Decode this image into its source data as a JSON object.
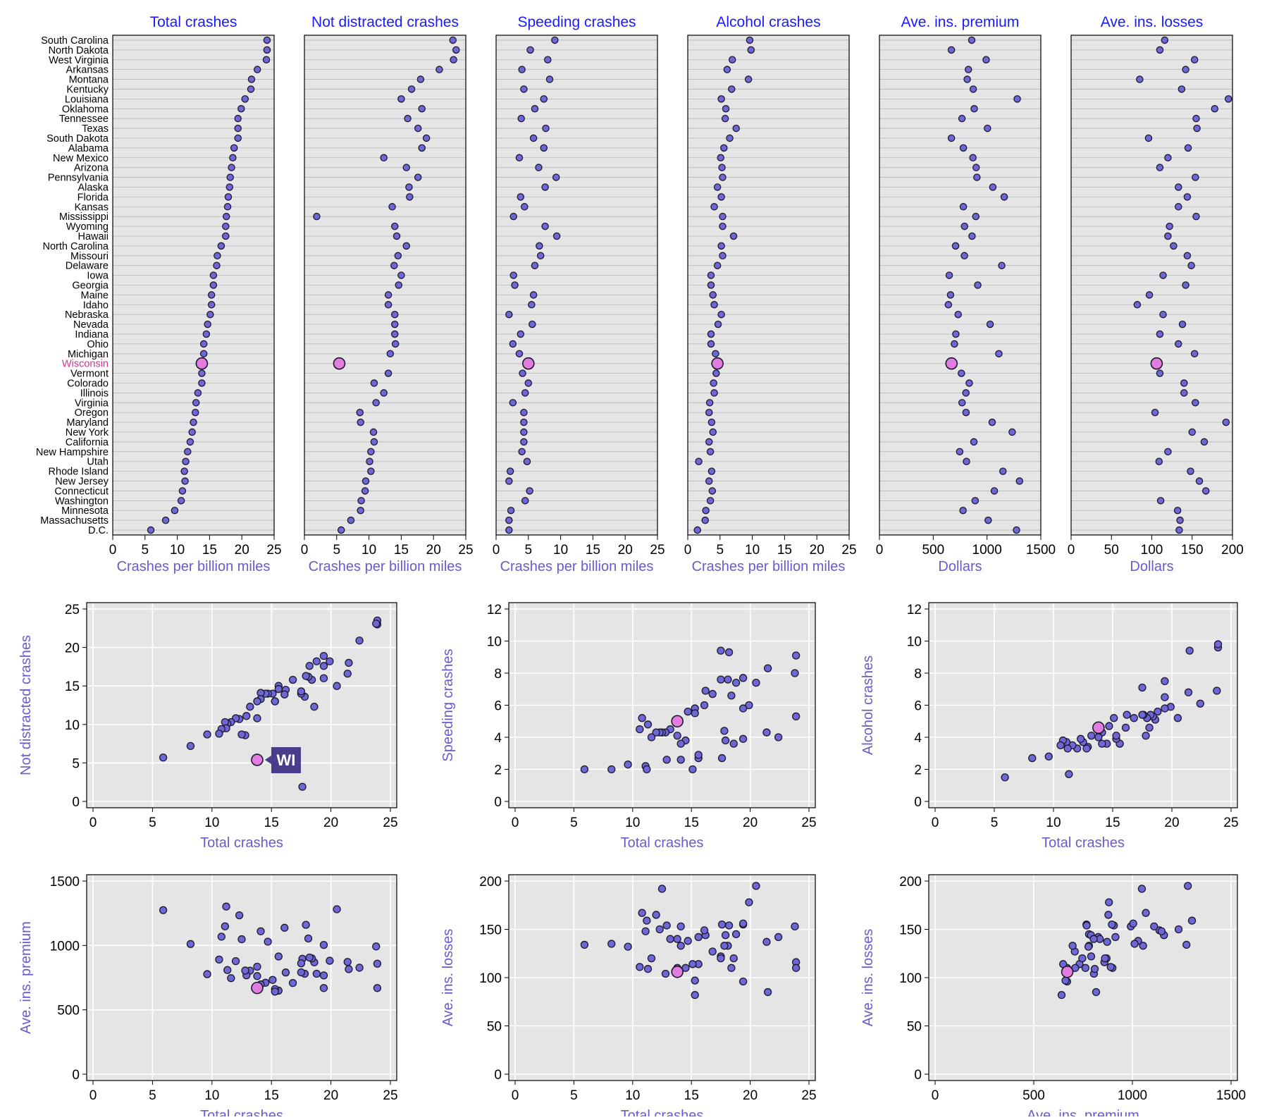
{
  "colors": {
    "panel_bg": "#e5e5e5",
    "grid": "#ffffff",
    "dot_fill": "#6f67d6",
    "dot_stroke": "#1a1a2e",
    "highlight_fill": "#e27ce0",
    "highlight_label": "#cc3399",
    "title": "#1a1aff",
    "axis_label": "#6a5acd",
    "tooltip_bg": "#483d8b",
    "tooltip_text": "#ffffff"
  },
  "highlight_state": "Wisconsin",
  "tooltip": {
    "label": "WI"
  },
  "states": [
    "South Carolina",
    "North Dakota",
    "West Virginia",
    "Arkansas",
    "Montana",
    "Kentucky",
    "Louisiana",
    "Oklahoma",
    "Tennessee",
    "Texas",
    "South Dakota",
    "Alabama",
    "New Mexico",
    "Arizona",
    "Pennsylvania",
    "Alaska",
    "Florida",
    "Kansas",
    "Mississippi",
    "Wyoming",
    "Hawaii",
    "North Carolina",
    "Missouri",
    "Delaware",
    "Iowa",
    "Georgia",
    "Maine",
    "Idaho",
    "Nebraska",
    "Nevada",
    "Indiana",
    "Ohio",
    "Michigan",
    "Wisconsin",
    "Vermont",
    "Colorado",
    "Illinois",
    "Virginia",
    "Oregon",
    "Maryland",
    "New York",
    "California",
    "New Hampshire",
    "Utah",
    "Rhode Island",
    "New Jersey",
    "Connecticut",
    "Washington",
    "Minnesota",
    "Massachusetts",
    "D.C."
  ],
  "chart_data": [
    {
      "type": "dot",
      "id": "total",
      "title": "Total crashes",
      "xlabel": "Crashes per billion miles",
      "xlim": [
        0,
        25
      ],
      "xticks": [
        0,
        5,
        10,
        15,
        20,
        25
      ],
      "values": [
        23.9,
        23.9,
        23.8,
        22.4,
        21.5,
        21.4,
        20.5,
        19.9,
        19.4,
        19.4,
        19.4,
        18.8,
        18.6,
        18.4,
        18.2,
        18.1,
        17.9,
        17.8,
        17.6,
        17.5,
        17.5,
        16.8,
        16.2,
        16.1,
        15.6,
        15.6,
        15.3,
        15.3,
        15.1,
        14.7,
        14.5,
        14.1,
        14.1,
        13.8,
        13.8,
        13.8,
        13.2,
        12.9,
        12.8,
        12.5,
        12.3,
        12.0,
        11.6,
        11.3,
        11.1,
        11.2,
        10.8,
        10.6,
        9.6,
        8.2,
        5.9
      ]
    },
    {
      "type": "dot",
      "id": "notdist",
      "title": "Not distracted crashes",
      "xlabel": "Crashes per billion miles",
      "xlim": [
        0,
        25
      ],
      "xticks": [
        0,
        5,
        10,
        15,
        20,
        25
      ],
      "values": [
        23.0,
        23.5,
        23.1,
        20.9,
        18.0,
        16.6,
        15.0,
        18.2,
        16.0,
        17.6,
        18.9,
        18.2,
        12.3,
        15.8,
        17.6,
        16.2,
        16.3,
        13.6,
        1.9,
        14.0,
        14.3,
        15.8,
        14.5,
        13.9,
        15.0,
        14.6,
        13.0,
        13.0,
        14.0,
        14.0,
        14.0,
        14.1,
        13.3,
        5.4,
        13.0,
        10.8,
        12.3,
        11.1,
        8.6,
        8.7,
        10.7,
        10.8,
        10.3,
        10.1,
        10.3,
        9.5,
        9.4,
        8.8,
        8.7,
        7.2,
        5.7
      ]
    },
    {
      "type": "dot",
      "id": "speeding",
      "title": "Speeding crashes",
      "xlabel": "Crashes per billion miles",
      "xlim": [
        0,
        25
      ],
      "xticks": [
        0,
        5,
        10,
        15,
        20,
        25
      ],
      "values": [
        9.1,
        5.3,
        8.0,
        4.0,
        8.3,
        4.3,
        7.4,
        6.0,
        3.9,
        7.7,
        5.8,
        7.4,
        3.6,
        6.6,
        9.3,
        7.6,
        3.8,
        4.4,
        2.7,
        7.6,
        9.4,
        6.7,
        6.9,
        6.0,
        2.7,
        2.9,
        5.8,
        5.5,
        2.0,
        5.6,
        3.8,
        2.6,
        3.6,
        5.0,
        4.1,
        5.0,
        4.5,
        2.6,
        4.3,
        4.3,
        4.3,
        4.3,
        4.0,
        4.8,
        2.2,
        2.0,
        5.2,
        4.5,
        2.3,
        2.0,
        2.0
      ]
    },
    {
      "type": "dot",
      "id": "alcohol",
      "title": "Alcohol crashes",
      "xlabel": "Crashes per billion miles",
      "xlim": [
        0,
        25
      ],
      "xticks": [
        0,
        5,
        10,
        15,
        20,
        25
      ],
      "values": [
        9.6,
        9.8,
        6.9,
        6.1,
        9.4,
        6.8,
        5.2,
        5.9,
        5.8,
        7.5,
        6.5,
        5.6,
        5.1,
        5.3,
        5.4,
        4.6,
        5.2,
        4.1,
        5.4,
        5.4,
        7.1,
        5.2,
        5.4,
        4.6,
        3.6,
        3.6,
        3.9,
        4.1,
        5.2,
        4.7,
        3.6,
        3.6,
        4.3,
        4.6,
        4.4,
        4.0,
        4.1,
        3.4,
        3.3,
        3.7,
        3.9,
        3.3,
        3.5,
        1.7,
        3.7,
        3.3,
        3.8,
        3.5,
        2.8,
        2.7,
        1.5
      ]
    },
    {
      "type": "dot",
      "id": "premium",
      "title": "Ave. ins. premium",
      "xlabel": "Dollars",
      "xlim": [
        0,
        1500
      ],
      "xticks": [
        0,
        500,
        1000,
        1500
      ],
      "values": [
        858,
        669,
        992,
        827,
        816,
        872,
        1281,
        881,
        767,
        1004,
        669,
        780,
        869,
        899,
        906,
        1054,
        1160,
        780,
        896,
        791,
        861,
        708,
        790,
        1137,
        649,
        914,
        661,
        641,
        732,
        1029,
        710,
        697,
        1110,
        670,
        762,
        835,
        804,
        768,
        805,
        1048,
        1234,
        878,
        746,
        809,
        1148,
        1302,
        1068,
        890,
        777,
        1011,
        1274
      ]
    },
    {
      "type": "dot",
      "id": "losses",
      "title": "Ave. ins. losses",
      "xlabel": "Dollars",
      "xlim": [
        0,
        200
      ],
      "xticks": [
        0,
        50,
        100,
        150,
        200
      ],
      "values": [
        116,
        110,
        153,
        142,
        85,
        137,
        195,
        178,
        155,
        156,
        96,
        145,
        120,
        110,
        154,
        133,
        144,
        133,
        155,
        122,
        120,
        127,
        144,
        149,
        114,
        142,
        97,
        82,
        114,
        138,
        110,
        133,
        153,
        106,
        110,
        140,
        140,
        154,
        104,
        192,
        150,
        165,
        120,
        109,
        148,
        159,
        167,
        111,
        132,
        135,
        134
      ]
    },
    {
      "type": "scatter",
      "id": "s1",
      "xlabel": "Total crashes",
      "ylabel": "Not distracted crashes",
      "x_of": "total",
      "y_of": "notdist",
      "xlim": [
        0,
        25
      ],
      "ylim": [
        0,
        25
      ],
      "xticks": [
        0,
        5,
        10,
        15,
        20,
        25
      ],
      "yticks": [
        0,
        5,
        10,
        15,
        20,
        25
      ]
    },
    {
      "type": "scatter",
      "id": "s2",
      "xlabel": "Total crashes",
      "ylabel": "Speeding crashes",
      "x_of": "total",
      "y_of": "speeding",
      "xlim": [
        0,
        25
      ],
      "ylim": [
        0,
        12
      ],
      "xticks": [
        0,
        5,
        10,
        15,
        20,
        25
      ],
      "yticks": [
        0,
        2,
        4,
        6,
        8,
        10,
        12
      ]
    },
    {
      "type": "scatter",
      "id": "s3",
      "xlabel": "Total crashes",
      "ylabel": "Alcohol crashes",
      "x_of": "total",
      "y_of": "alcohol",
      "xlim": [
        0,
        25
      ],
      "ylim": [
        0,
        12
      ],
      "xticks": [
        0,
        5,
        10,
        15,
        20,
        25
      ],
      "yticks": [
        0,
        2,
        4,
        6,
        8,
        10,
        12
      ]
    },
    {
      "type": "scatter",
      "id": "s4",
      "xlabel": "Total crashes",
      "ylabel": "Ave. ins. premium",
      "x_of": "total",
      "y_of": "premium",
      "xlim": [
        0,
        25
      ],
      "ylim": [
        0,
        1500
      ],
      "xticks": [
        0,
        5,
        10,
        15,
        20,
        25
      ],
      "yticks": [
        0,
        500,
        1000,
        1500
      ]
    },
    {
      "type": "scatter",
      "id": "s5",
      "xlabel": "Total crashes",
      "ylabel": "Ave. ins. losses",
      "x_of": "total",
      "y_of": "losses",
      "xlim": [
        0,
        25
      ],
      "ylim": [
        0,
        200
      ],
      "xticks": [
        0,
        5,
        10,
        15,
        20,
        25
      ],
      "yticks": [
        0,
        50,
        100,
        150,
        200
      ]
    },
    {
      "type": "scatter",
      "id": "s6",
      "xlabel": "Ave. ins. premium",
      "ylabel": "Ave. ins. losses",
      "x_of": "premium",
      "y_of": "losses",
      "xlim": [
        0,
        1500
      ],
      "ylim": [
        0,
        200
      ],
      "xticks": [
        0,
        500,
        1000,
        1500
      ],
      "yticks": [
        0,
        50,
        100,
        150,
        200
      ]
    }
  ]
}
